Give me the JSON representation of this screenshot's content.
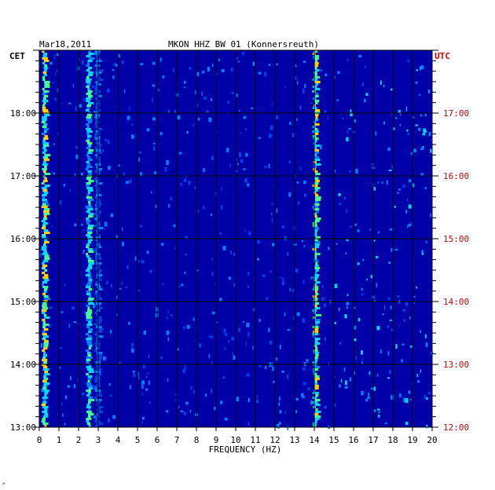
{
  "header": {
    "date": "Mar18,2011",
    "station": "MKON HHZ BW 01 (Konnersreuth)"
  },
  "axes": {
    "left_tz": "CET",
    "right_tz": "UTC",
    "xlabel": "FREQUENCY (HZ)"
  },
  "footer_mark": "‸",
  "colors": {
    "background": "#0000a8",
    "grid": "#000000",
    "left_text": "#000000",
    "right_text": "#cc0000"
  },
  "chart_data": {
    "type": "heatmap",
    "title": "MKON HHZ BW 01 (Konnersreuth)",
    "xlabel": "FREQUENCY (HZ)",
    "x_ticks": [
      "0",
      "1",
      "2",
      "3",
      "4",
      "5",
      "6",
      "7",
      "8",
      "9",
      "10",
      "11",
      "12",
      "13",
      "14",
      "15",
      "16",
      "17",
      "18",
      "19",
      "20"
    ],
    "xlim": [
      0,
      20
    ],
    "y_ticks_left": [
      "18:00",
      "17:00",
      "16:00",
      "15:00",
      "14:00",
      "13:00"
    ],
    "y_ticks_right": [
      "17:00",
      "16:00",
      "15:00",
      "14:00",
      "13:00",
      "12:00"
    ],
    "ylim_cet_hours": [
      13.0,
      19.0
    ],
    "bands": [
      {
        "freq": 0.3,
        "strength": 0.95
      },
      {
        "freq": 2.55,
        "strength": 0.8
      },
      {
        "freq": 3.0,
        "strength": 0.45
      },
      {
        "freq": 14.1,
        "strength": 0.9
      }
    ]
  }
}
